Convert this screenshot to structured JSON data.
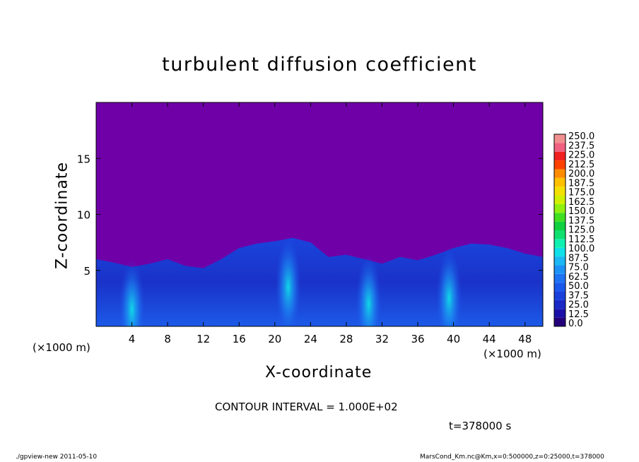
{
  "chart_data": {
    "type": "heatmap",
    "title": "turbulent diffusion coefficient",
    "xlabel": "X-coordinate",
    "ylabel": "Z-coordinate",
    "x_unit_label": "(×1000 m)",
    "xlim": [
      0,
      50
    ],
    "ylim": [
      0,
      20
    ],
    "x_ticks": [
      4,
      8,
      12,
      16,
      20,
      24,
      28,
      32,
      36,
      40,
      44,
      48
    ],
    "y_ticks": [
      5,
      10,
      15
    ],
    "colorbar": {
      "levels": [
        "0.0",
        "12.5",
        "25.0",
        "37.5",
        "50.0",
        "62.5",
        "75.0",
        "87.5",
        "100.0",
        "112.5",
        "125.0",
        "137.5",
        "150.0",
        "162.5",
        "175.0",
        "187.5",
        "200.0",
        "212.5",
        "225.0",
        "237.5",
        "250.0"
      ],
      "colors": [
        "#24007a",
        "#1a10a8",
        "#1a28c6",
        "#1a40dc",
        "#1a58ec",
        "#1e72f4",
        "#1c92f6",
        "#1cb8f4",
        "#10e0e8",
        "#10f0b0",
        "#10e070",
        "#10d040",
        "#40e020",
        "#90f010",
        "#d0f000",
        "#f4e000",
        "#ffc000",
        "#ff8c00",
        "#ff4000",
        "#f02020",
        "#f06080",
        "#f09090"
      ]
    },
    "background_color": "#6f00a8",
    "turbulent_top_profile": [
      [
        0,
        6.0
      ],
      [
        2,
        5.7
      ],
      [
        4,
        5.3
      ],
      [
        6,
        5.6
      ],
      [
        8,
        6.0
      ],
      [
        10,
        5.4
      ],
      [
        12,
        5.2
      ],
      [
        14,
        6.0
      ],
      [
        16,
        7.0
      ],
      [
        18,
        7.4
      ],
      [
        20,
        7.6
      ],
      [
        22,
        7.9
      ],
      [
        24,
        7.5
      ],
      [
        26,
        6.2
      ],
      [
        28,
        6.4
      ],
      [
        30,
        6.0
      ],
      [
        32,
        5.6
      ],
      [
        34,
        6.2
      ],
      [
        36,
        5.9
      ],
      [
        38,
        6.4
      ],
      [
        40,
        7.0
      ],
      [
        42,
        7.4
      ],
      [
        44,
        7.3
      ],
      [
        46,
        7.0
      ],
      [
        48,
        6.5
      ],
      [
        50,
        6.2
      ]
    ],
    "bright_plumes": [
      {
        "x": 4.0,
        "z": 1.5,
        "value": 75.0
      },
      {
        "x": 21.5,
        "z": 3.5,
        "value": 75.0
      },
      {
        "x": 39.5,
        "z": 2.5,
        "value": 75.0
      },
      {
        "x": 30.5,
        "z": 2.0,
        "value": 62.5
      }
    ]
  },
  "contour_interval_text": "CONTOUR INTERVAL = 1.000E+02",
  "time_text": "t=378000 s",
  "footer": {
    "left": "./gpview-new  2011-05-10",
    "right": "MarsCond_Km.nc@Km,x=0:500000,z=0:25000,t=378000"
  }
}
